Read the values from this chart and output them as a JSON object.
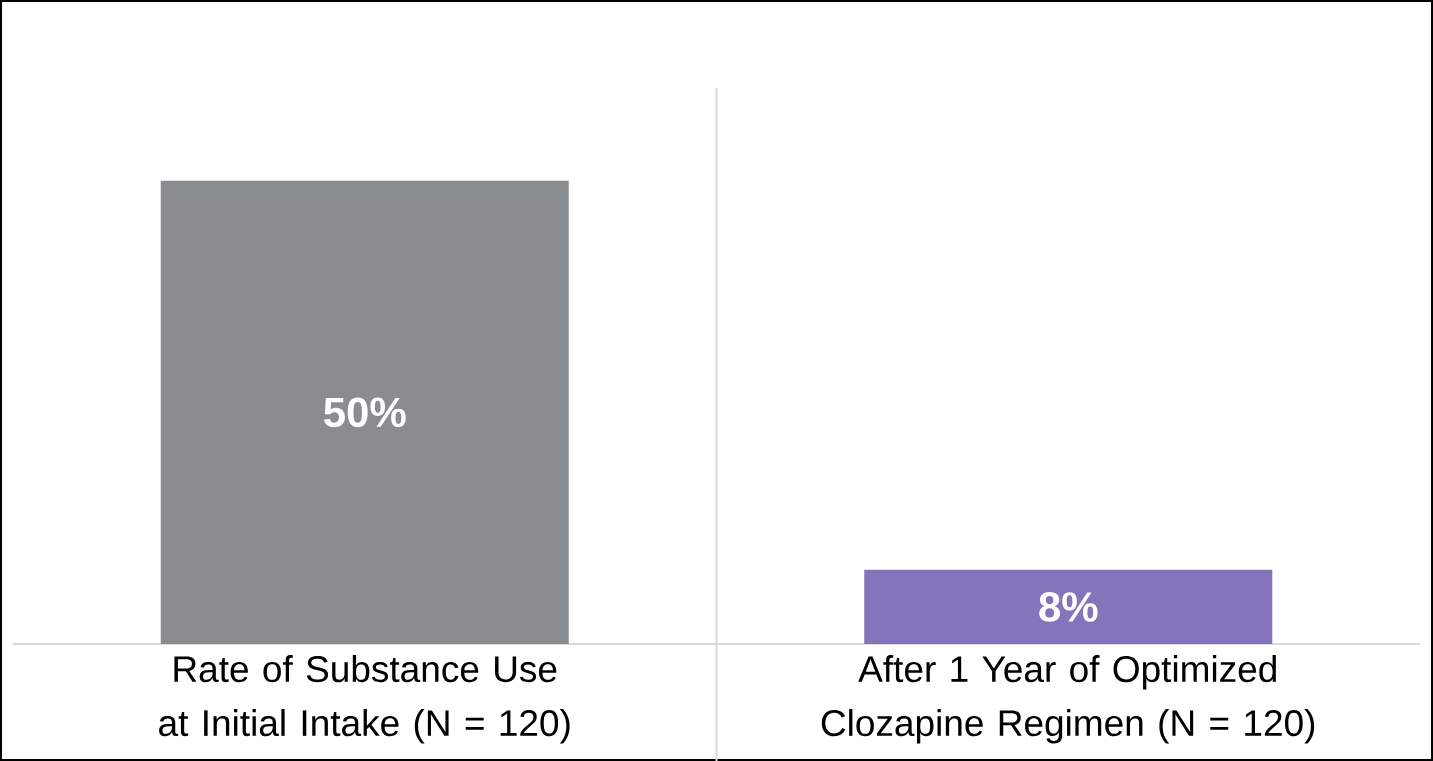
{
  "chart_data": {
    "type": "bar",
    "categories": [
      "Rate of Substance Use at Initial Intake (N = 120)",
      "After 1 Year of Optimized Clozapine Regimen (N = 120)"
    ],
    "values": [
      50,
      8
    ],
    "colors": [
      "#8a8d8f",
      "#8573bb"
    ],
    "value_labels": [
      "50%",
      "8%"
    ],
    "ylim": [
      0,
      60
    ]
  }
}
